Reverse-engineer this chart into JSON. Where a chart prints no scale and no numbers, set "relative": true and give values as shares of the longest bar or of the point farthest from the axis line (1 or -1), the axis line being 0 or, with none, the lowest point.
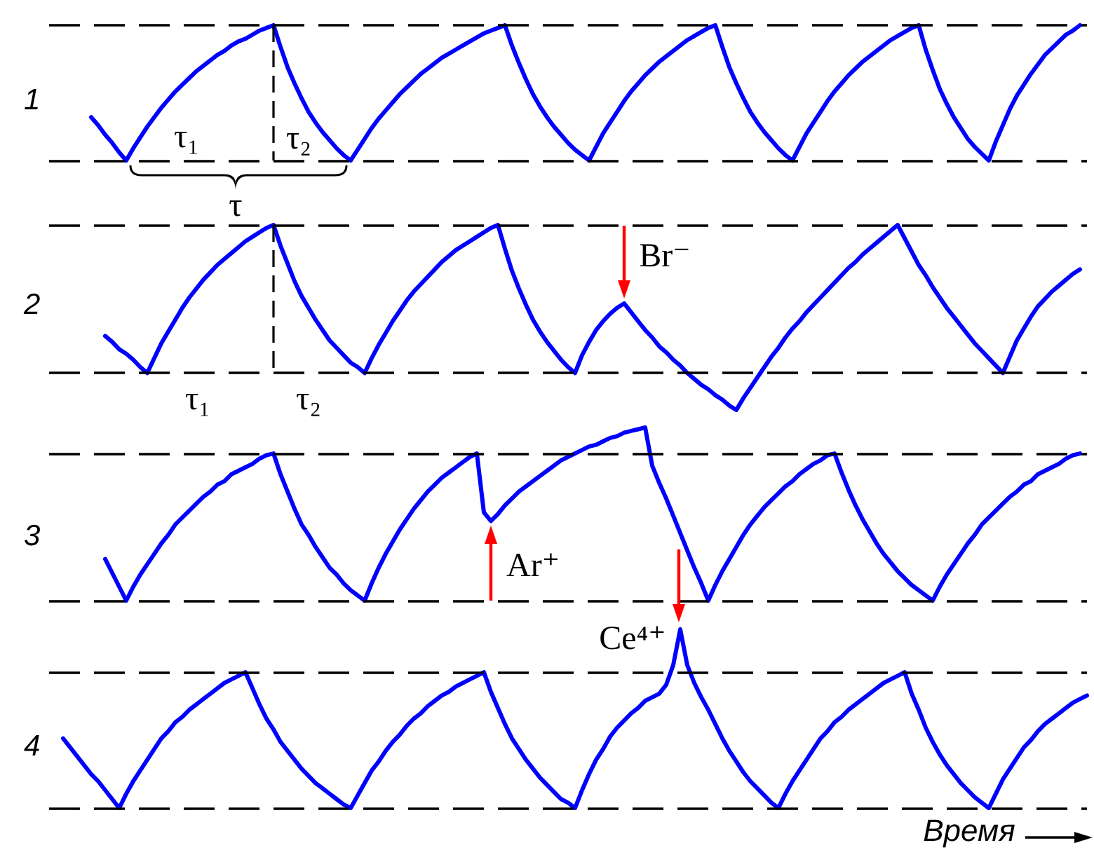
{
  "chart_data": [
    {
      "type": "line",
      "title": "1",
      "relative": true,
      "grid": false,
      "line_style": "solid",
      "color": "#0000ff",
      "categories": [
        null,
        null,
        null,
        null,
        null,
        null,
        null,
        null,
        null,
        null,
        null,
        null,
        null,
        null,
        null,
        null,
        null,
        null,
        null,
        null,
        null,
        null,
        null,
        null,
        null,
        null,
        null,
        null,
        null,
        null,
        null,
        null,
        null,
        null,
        null,
        null,
        null,
        null,
        null,
        null,
        null,
        null,
        null,
        null,
        null,
        null,
        null,
        null,
        null,
        null,
        null,
        null,
        null,
        null,
        null,
        null,
        null,
        null,
        null,
        null,
        null,
        null,
        null,
        null,
        null,
        null,
        null,
        null,
        null,
        null,
        null,
        null,
        null,
        null,
        null,
        null,
        null,
        null,
        null,
        null,
        null,
        null,
        null,
        null,
        null,
        null,
        null,
        null,
        null,
        null,
        null,
        null,
        null,
        null,
        null,
        null,
        null,
        null,
        null,
        null,
        null,
        null,
        null,
        null,
        null,
        null,
        null,
        null,
        null,
        null,
        null,
        null,
        null,
        null,
        null,
        null,
        null,
        null,
        null,
        null,
        null,
        null,
        null,
        null,
        null,
        null,
        null,
        null,
        null,
        null,
        null,
        null,
        null,
        null,
        null,
        null,
        null,
        null,
        null,
        null,
        null,
        null,
        null,
        null,
        null,
        null,
        null,
        null,
        null
      ],
      "values": [
        null,
        null,
        null,
        null,
        null,
        null,
        0.32,
        0.26,
        0.19,
        0.13,
        0.06,
        0,
        0.09,
        0.17,
        0.25,
        0.32,
        0.39,
        0.45,
        0.51,
        0.56,
        0.61,
        0.66,
        0.7,
        0.74,
        0.78,
        0.81,
        0.85,
        0.88,
        0.9,
        0.93,
        0.96,
        0.98,
        1,
        0.84,
        0.69,
        0.57,
        0.46,
        0.36,
        0.28,
        0.21,
        0.15,
        0.09,
        0.04,
        0,
        0.08,
        0.16,
        0.24,
        0.31,
        0.37,
        0.43,
        0.49,
        0.54,
        0.59,
        0.64,
        0.68,
        0.72,
        0.76,
        0.79,
        0.82,
        0.85,
        0.88,
        0.91,
        0.94,
        0.96,
        0.98,
        1,
        0.85,
        0.72,
        0.6,
        0.49,
        0.4,
        0.32,
        0.25,
        0.19,
        0.13,
        0.08,
        0.04,
        0,
        0.1,
        0.2,
        0.28,
        0.36,
        0.44,
        0.51,
        0.57,
        0.63,
        0.68,
        0.73,
        0.77,
        0.81,
        0.85,
        0.89,
        0.92,
        0.95,
        0.98,
        1,
        0.84,
        0.69,
        0.57,
        0.46,
        0.36,
        0.28,
        0.21,
        0.15,
        0.09,
        0.04,
        0,
        0.1,
        0.2,
        0.28,
        0.36,
        0.44,
        0.51,
        0.57,
        0.63,
        0.68,
        0.73,
        0.77,
        0.81,
        0.85,
        0.89,
        0.92,
        0.95,
        0.98,
        1,
        0.82,
        0.67,
        0.53,
        0.42,
        0.32,
        0.24,
        0.16,
        0.1,
        0.05,
        0,
        0.14,
        0.26,
        0.38,
        0.48,
        0.56,
        0.64,
        0.71,
        0.78,
        0.83,
        0.88,
        0.93,
        0.96,
        1,
        null
      ],
      "ref_lines": [
        {
          "axis": "y",
          "value": 1,
          "line_style": "dashed",
          "color": "#000000"
        },
        {
          "axis": "y",
          "value": 0,
          "line_style": "dashed",
          "color": "#000000"
        }
      ],
      "annotations": [
        "τ₁",
        "τ₂",
        "τ"
      ]
    },
    {
      "type": "line",
      "title": "2",
      "relative": true,
      "grid": false,
      "line_style": "solid",
      "color": "#0000ff",
      "categories": [
        null,
        null,
        null,
        null,
        null,
        null,
        null,
        null,
        null,
        null,
        null,
        null,
        null,
        null,
        null,
        null,
        null,
        null,
        null,
        null,
        null,
        null,
        null,
        null,
        null,
        null,
        null,
        null,
        null,
        null,
        null,
        null,
        null,
        null,
        null,
        null,
        null,
        null,
        null,
        null,
        null,
        null,
        null,
        null,
        null,
        null,
        null,
        null,
        null,
        null,
        null,
        null,
        null,
        null,
        null,
        null,
        null,
        null,
        null,
        null,
        null,
        null,
        null,
        null,
        null,
        null,
        null,
        null,
        null,
        null,
        null,
        null,
        null,
        null,
        null,
        null,
        null,
        null,
        null,
        null,
        null,
        null,
        null,
        null,
        null,
        null,
        null,
        null,
        null,
        null,
        null,
        null,
        null,
        null,
        null,
        null,
        null,
        null,
        null,
        null,
        null,
        null,
        null,
        null,
        null,
        null,
        null,
        null,
        null,
        null,
        null,
        null,
        null,
        null,
        null,
        null,
        null,
        null,
        null,
        null,
        null,
        null,
        null,
        null,
        null,
        null,
        null,
        null,
        null,
        null,
        null,
        null,
        null,
        null,
        null,
        null,
        null,
        null,
        null,
        null,
        null,
        null,
        null,
        null,
        null,
        null,
        null,
        null,
        null
      ],
      "values": [
        null,
        null,
        null,
        null,
        null,
        null,
        null,
        null,
        0.25,
        0.21,
        0.16,
        0.13,
        0.09,
        0.04,
        0,
        0.1,
        0.2,
        0.28,
        0.36,
        0.44,
        0.51,
        0.57,
        0.63,
        0.68,
        0.73,
        0.77,
        0.81,
        0.85,
        0.89,
        0.92,
        0.95,
        0.98,
        1,
        0.86,
        0.74,
        0.62,
        0.52,
        0.44,
        0.36,
        0.29,
        0.22,
        0.17,
        0.12,
        0.07,
        0.04,
        0,
        0.1,
        0.19,
        0.27,
        0.35,
        0.42,
        0.49,
        0.55,
        0.6,
        0.65,
        0.7,
        0.75,
        0.79,
        0.83,
        0.86,
        0.89,
        0.92,
        0.95,
        0.98,
        1,
        0.84,
        0.69,
        0.57,
        0.46,
        0.36,
        0.28,
        0.21,
        0.15,
        0.09,
        0.04,
        0,
        0.12,
        0.21,
        0.29,
        0.35,
        0.4,
        0.44,
        0.47,
        0.41,
        0.35,
        0.29,
        0.24,
        0.18,
        0.14,
        0.09,
        0.05,
        0,
        -0.04,
        -0.08,
        -0.11,
        -0.15,
        -0.18,
        -0.22,
        -0.25,
        -0.17,
        -0.1,
        -0.03,
        0.04,
        0.11,
        0.17,
        0.24,
        0.3,
        0.35,
        0.41,
        0.46,
        0.51,
        0.56,
        0.61,
        0.66,
        0.71,
        0.75,
        0.8,
        0.84,
        0.88,
        0.92,
        0.96,
        1,
        0.91,
        0.82,
        0.73,
        0.66,
        0.58,
        0.51,
        0.44,
        0.38,
        0.32,
        0.26,
        0.2,
        0.15,
        0.1,
        0.05,
        0,
        0.11,
        0.22,
        0.3,
        0.38,
        0.45,
        0.5,
        0.55,
        0.59,
        0.63,
        0.67,
        0.7,
        null
      ],
      "ref_lines": [
        {
          "axis": "y",
          "value": 1,
          "line_style": "dashed",
          "color": "#000000"
        },
        {
          "axis": "y",
          "value": 0,
          "line_style": "dashed",
          "color": "#000000"
        }
      ],
      "annotations": [
        "τ₁",
        "τ₂",
        "Br⁻"
      ]
    },
    {
      "type": "line",
      "title": "3",
      "relative": true,
      "grid": false,
      "line_style": "solid",
      "color": "#0000ff",
      "categories": [
        null,
        null,
        null,
        null,
        null,
        null,
        null,
        null,
        null,
        null,
        null,
        null,
        null,
        null,
        null,
        null,
        null,
        null,
        null,
        null,
        null,
        null,
        null,
        null,
        null,
        null,
        null,
        null,
        null,
        null,
        null,
        null,
        null,
        null,
        null,
        null,
        null,
        null,
        null,
        null,
        null,
        null,
        null,
        null,
        null,
        null,
        null,
        null,
        null,
        null,
        null,
        null,
        null,
        null,
        null,
        null,
        null,
        null,
        null,
        null,
        null,
        null,
        null,
        null,
        null,
        null,
        null,
        null,
        null,
        null,
        null,
        null,
        null,
        null,
        null,
        null,
        null,
        null,
        null,
        null,
        null,
        null,
        null,
        null,
        null,
        null,
        null,
        null,
        null,
        null,
        null,
        null,
        null,
        null,
        null,
        null,
        null,
        null,
        null,
        null,
        null,
        null,
        null,
        null,
        null,
        null,
        null,
        null,
        null,
        null,
        null,
        null,
        null,
        null,
        null,
        null,
        null,
        null,
        null,
        null,
        null,
        null,
        null,
        null,
        null,
        null,
        null,
        null,
        null,
        null,
        null,
        null,
        null,
        null,
        null,
        null,
        null,
        null,
        null,
        null,
        null,
        null,
        null,
        null,
        null,
        null,
        null,
        null,
        null
      ],
      "values": [
        null,
        null,
        null,
        null,
        null,
        null,
        null,
        null,
        0.24,
        0.16,
        0.08,
        0,
        0.08,
        0.15,
        0.21,
        0.27,
        0.33,
        0.38,
        0.44,
        0.48,
        0.52,
        0.56,
        0.6,
        0.63,
        0.67,
        0.69,
        0.73,
        0.75,
        0.77,
        0.79,
        0.82,
        0.84,
        0.85,
        0.73,
        0.63,
        0.53,
        0.44,
        0.38,
        0.31,
        0.25,
        0.19,
        0.15,
        0.1,
        0.06,
        0.03,
        0,
        0.1,
        0.19,
        0.27,
        0.34,
        0.41,
        0.47,
        0.53,
        0.58,
        0.63,
        0.67,
        0.71,
        0.74,
        0.77,
        0.8,
        0.83,
        0.85,
        0.51,
        0.46,
        0.5,
        0.55,
        0.59,
        0.63,
        0.66,
        0.69,
        0.72,
        0.75,
        0.78,
        0.81,
        0.83,
        0.85,
        0.87,
        0.89,
        0.9,
        0.92,
        0.94,
        0.95,
        0.97,
        0.98,
        0.99,
        1,
        0.78,
        0.68,
        0.59,
        0.49,
        0.39,
        0.29,
        0.19,
        0.1,
        0,
        0.09,
        0.17,
        0.24,
        0.31,
        0.38,
        0.44,
        0.49,
        0.54,
        0.58,
        0.62,
        0.66,
        0.69,
        0.73,
        0.76,
        0.79,
        0.81,
        0.84,
        0.85,
        0.74,
        0.64,
        0.55,
        0.47,
        0.4,
        0.33,
        0.27,
        0.22,
        0.17,
        0.13,
        0.09,
        0.06,
        0.03,
        0,
        0.08,
        0.15,
        0.21,
        0.27,
        0.33,
        0.38,
        0.44,
        0.48,
        0.52,
        0.56,
        0.6,
        0.63,
        0.67,
        0.69,
        0.73,
        0.75,
        0.77,
        0.79,
        0.82,
        0.84,
        0.85,
        null
      ],
      "ref_lines": [
        {
          "axis": "y",
          "value": 0.85,
          "line_style": "dashed",
          "color": "#000000"
        },
        {
          "axis": "y",
          "value": 0,
          "line_style": "dashed",
          "color": "#000000"
        }
      ],
      "annotations": [
        "Ar⁺"
      ]
    },
    {
      "type": "line",
      "title": "4",
      "xlabel": "Время",
      "relative": true,
      "grid": false,
      "line_style": "solid",
      "color": "#0000ff",
      "categories": [
        null,
        null,
        null,
        null,
        null,
        null,
        null,
        null,
        null,
        null,
        null,
        null,
        null,
        null,
        null,
        null,
        null,
        null,
        null,
        null,
        null,
        null,
        null,
        null,
        null,
        null,
        null,
        null,
        null,
        null,
        null,
        null,
        null,
        null,
        null,
        null,
        null,
        null,
        null,
        null,
        null,
        null,
        null,
        null,
        null,
        null,
        null,
        null,
        null,
        null,
        null,
        null,
        null,
        null,
        null,
        null,
        null,
        null,
        null,
        null,
        null,
        null,
        null,
        null,
        null,
        null,
        null,
        null,
        null,
        null,
        null,
        null,
        null,
        null,
        null,
        null,
        null,
        null,
        null,
        null,
        null,
        null,
        null,
        null,
        null,
        null,
        null,
        null,
        null,
        null,
        null,
        null,
        null,
        null,
        null,
        null,
        null,
        null,
        null,
        null,
        null,
        null,
        null,
        null,
        null,
        null,
        null,
        null,
        null,
        null,
        null,
        null,
        null,
        null,
        null,
        null,
        null,
        null,
        null,
        null,
        null,
        null,
        null,
        null,
        null,
        null,
        null,
        null,
        null,
        null,
        null,
        null,
        null,
        null,
        null,
        null,
        null,
        null,
        null,
        null,
        null,
        null,
        null,
        null,
        null,
        null,
        null,
        null,
        null
      ],
      "values": [
        null,
        null,
        0.39,
        0.34,
        0.29,
        0.24,
        0.19,
        0.15,
        0.1,
        0.05,
        0,
        0.08,
        0.15,
        0.21,
        0.27,
        0.33,
        0.39,
        0.43,
        0.48,
        0.51,
        0.55,
        0.58,
        0.61,
        0.64,
        0.67,
        0.7,
        0.72,
        0.74,
        0.76,
        0.67,
        0.58,
        0.5,
        0.44,
        0.37,
        0.32,
        0.27,
        0.22,
        0.18,
        0.14,
        0.11,
        0.08,
        0.05,
        0.02,
        0,
        0.07,
        0.14,
        0.21,
        0.26,
        0.32,
        0.37,
        0.41,
        0.46,
        0.5,
        0.53,
        0.57,
        0.6,
        0.63,
        0.65,
        0.68,
        0.7,
        0.72,
        0.74,
        0.76,
        0.65,
        0.56,
        0.47,
        0.39,
        0.33,
        0.27,
        0.22,
        0.17,
        0.13,
        0.09,
        0.05,
        0.03,
        0,
        0.1,
        0.19,
        0.27,
        0.33,
        0.4,
        0.45,
        0.49,
        0.53,
        0.56,
        0.6,
        0.62,
        0.64,
        0.69,
        0.8,
        1,
        0.8,
        0.7,
        0.62,
        0.55,
        0.47,
        0.39,
        0.32,
        0.26,
        0.2,
        0.15,
        0.11,
        0.07,
        0.03,
        0,
        0.08,
        0.15,
        0.21,
        0.27,
        0.33,
        0.39,
        0.43,
        0.48,
        0.51,
        0.55,
        0.58,
        0.61,
        0.64,
        0.67,
        0.7,
        0.72,
        0.74,
        0.76,
        0.64,
        0.55,
        0.45,
        0.37,
        0.3,
        0.24,
        0.19,
        0.14,
        0.1,
        0.06,
        0.03,
        0,
        0.08,
        0.16,
        0.22,
        0.28,
        0.34,
        0.38,
        0.43,
        0.47,
        0.5,
        0.53,
        0.56,
        0.59,
        0.61,
        0.63
      ],
      "ref_lines": [
        {
          "axis": "y",
          "value": 0.76,
          "line_style": "dashed",
          "color": "#000000"
        },
        {
          "axis": "y",
          "value": 0,
          "line_style": "dashed",
          "color": "#000000"
        }
      ],
      "annotations": [
        "Ce⁴⁺"
      ]
    }
  ]
}
